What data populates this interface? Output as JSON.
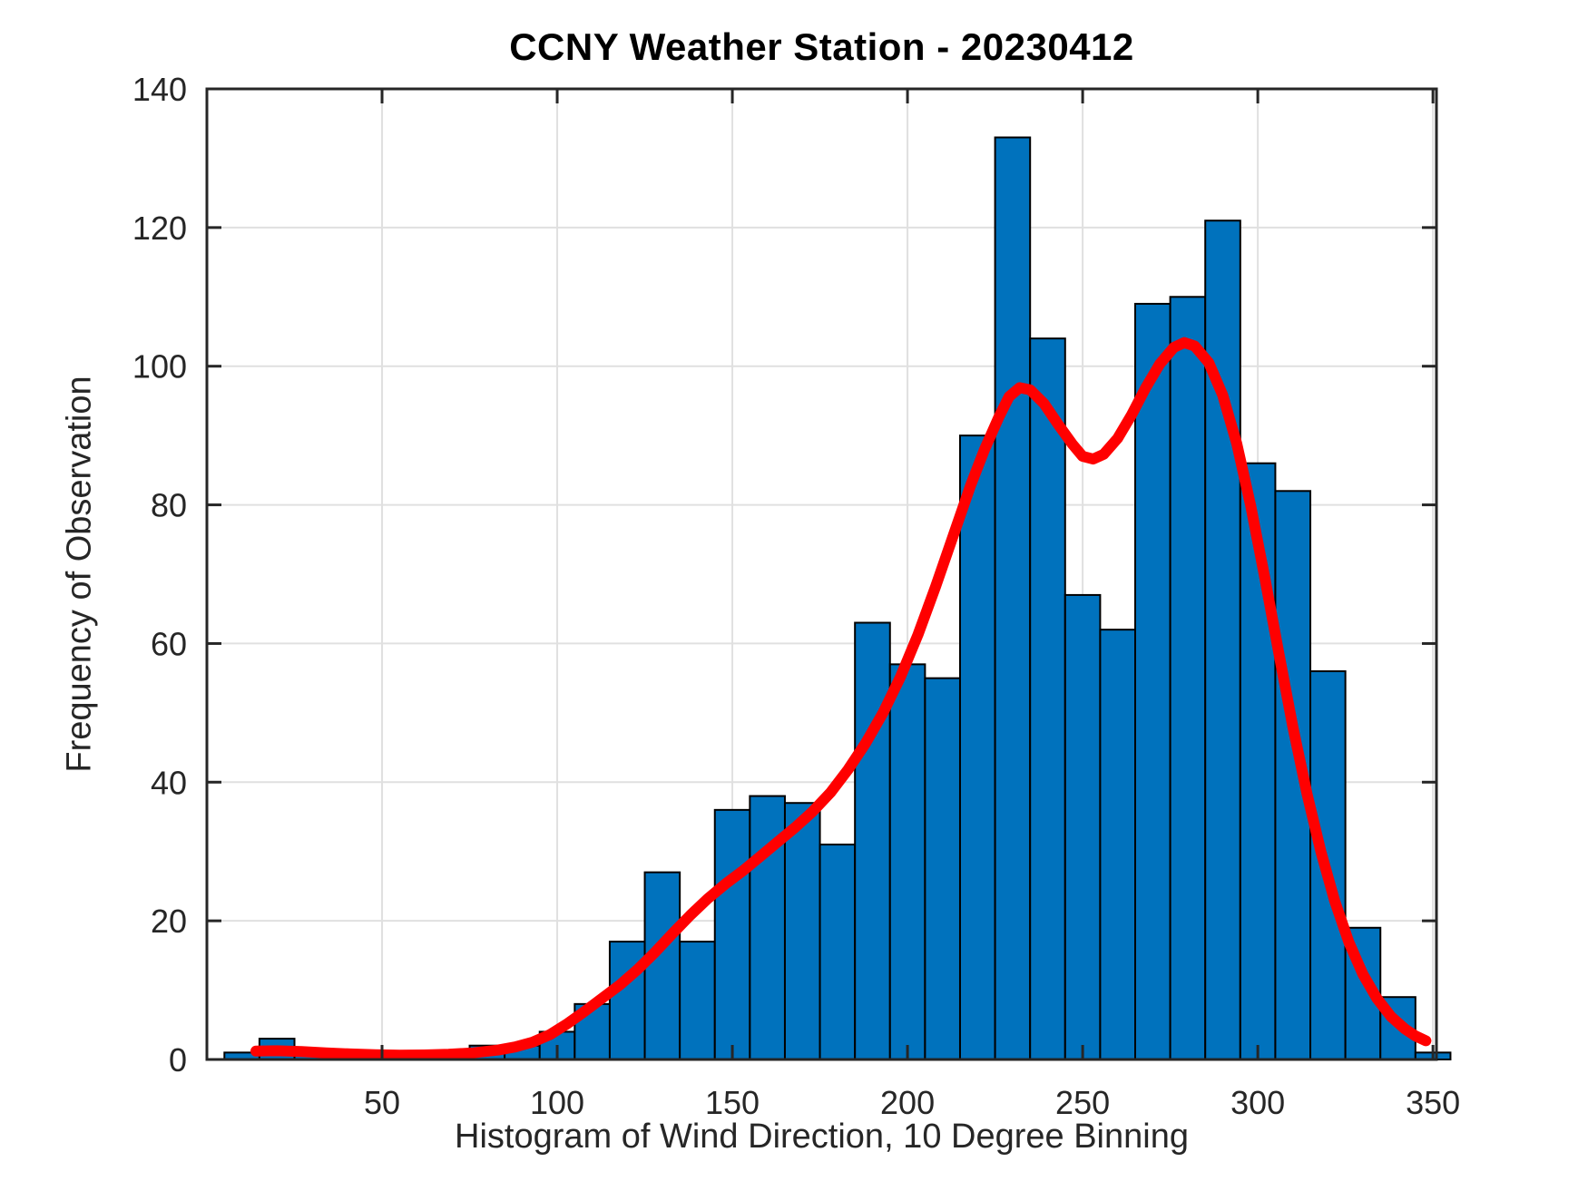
{
  "chart_data": {
    "type": "bar",
    "subtype": "histogram-with-fit-line",
    "title": "CCNY Weather Station - 20230412",
    "xlabel": "Histogram of Wind Direction, 10 Degree Binning",
    "ylabel": "Frequency of Observation",
    "xlim": [
      0,
      351
    ],
    "ylim": [
      0,
      140
    ],
    "xticks": [
      50,
      100,
      150,
      200,
      250,
      300,
      350
    ],
    "yticks": [
      0,
      20,
      40,
      60,
      80,
      100,
      120,
      140
    ],
    "grid": true,
    "legend": "none",
    "bin_start": 5,
    "bin_width": 10,
    "bin_counts": [
      1,
      3,
      1,
      0,
      0,
      1,
      1,
      2,
      2,
      4,
      8,
      17,
      27,
      17,
      36,
      38,
      37,
      31,
      63,
      57,
      55,
      90,
      133,
      104,
      67,
      62,
      109,
      110,
      121,
      86,
      82,
      56,
      19,
      9,
      1
    ],
    "fit_curve": {
      "name": "density-fit-line",
      "points": [
        [
          14,
          1.2
        ],
        [
          20,
          1.25
        ],
        [
          27,
          1.15
        ],
        [
          34,
          0.95
        ],
        [
          41,
          0.8
        ],
        [
          48,
          0.68
        ],
        [
          55,
          0.62
        ],
        [
          62,
          0.65
        ],
        [
          69,
          0.75
        ],
        [
          76,
          0.95
        ],
        [
          83,
          1.35
        ],
        [
          88,
          1.8
        ],
        [
          93,
          2.5
        ],
        [
          98,
          3.6
        ],
        [
          103,
          5.2
        ],
        [
          108,
          7.0
        ],
        [
          113,
          8.9
        ],
        [
          118,
          10.8
        ],
        [
          123,
          13.0
        ],
        [
          128,
          15.5
        ],
        [
          133,
          18.2
        ],
        [
          138,
          20.8
        ],
        [
          143,
          23.2
        ],
        [
          148,
          25.3
        ],
        [
          153,
          27.2
        ],
        [
          158,
          29.3
        ],
        [
          163,
          31.4
        ],
        [
          168,
          33.5
        ],
        [
          173,
          35.8
        ],
        [
          178,
          38.5
        ],
        [
          183,
          41.8
        ],
        [
          188,
          45.6
        ],
        [
          193,
          50.0
        ],
        [
          198,
          55.2
        ],
        [
          203,
          61.3
        ],
        [
          208,
          68.2
        ],
        [
          213,
          75.5
        ],
        [
          218,
          82.8
        ],
        [
          222,
          88.0
        ],
        [
          226,
          92.6
        ],
        [
          229,
          95.6
        ],
        [
          232,
          96.9
        ],
        [
          235,
          96.6
        ],
        [
          239,
          94.6
        ],
        [
          243,
          91.6
        ],
        [
          247,
          88.8
        ],
        [
          250,
          87.0
        ],
        [
          253,
          86.6
        ],
        [
          256,
          87.3
        ],
        [
          260,
          89.6
        ],
        [
          264,
          93.0
        ],
        [
          268,
          96.9
        ],
        [
          272,
          100.3
        ],
        [
          276,
          102.7
        ],
        [
          279,
          103.4
        ],
        [
          282,
          102.9
        ],
        [
          286,
          100.5
        ],
        [
          290,
          95.8
        ],
        [
          294,
          88.8
        ],
        [
          298,
          79.8
        ],
        [
          302,
          69.5
        ],
        [
          306,
          58.6
        ],
        [
          310,
          48.0
        ],
        [
          314,
          38.4
        ],
        [
          318,
          30.0
        ],
        [
          322,
          22.8
        ],
        [
          326,
          16.9
        ],
        [
          330,
          12.3
        ],
        [
          334,
          8.8
        ],
        [
          338,
          6.2
        ],
        [
          342,
          4.4
        ],
        [
          345,
          3.4
        ],
        [
          348,
          2.7
        ]
      ]
    },
    "colors": {
      "bar_fill": "#0072BD",
      "bar_edge": "#000000",
      "fit_line": "#FF0000",
      "grid": "#E0E0E0",
      "axis": "#262626",
      "tick_text": "#262626",
      "title_text": "#000000",
      "background": "#FFFFFF"
    }
  }
}
